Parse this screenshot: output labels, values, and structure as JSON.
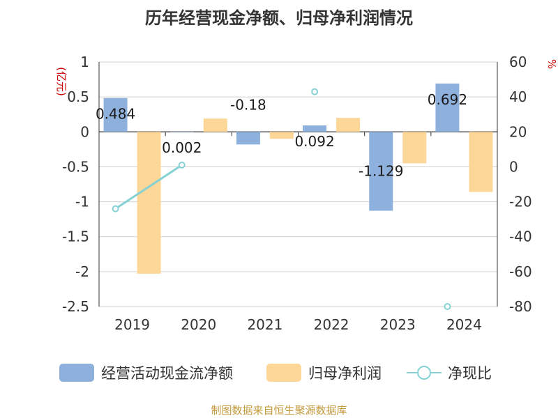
{
  "title": "历年经营现金净额、归母净利润情况",
  "footer": "制图数据来自恒生聚源数据库",
  "chart_data": {
    "type": "bar",
    "categories": [
      "2019",
      "2020",
      "2021",
      "2022",
      "2023",
      "2024"
    ],
    "series": [
      {
        "name": "经营活动现金流净额",
        "type": "bar",
        "axis": "left",
        "color": "#8eb0dc",
        "values": [
          0.484,
          0.002,
          -0.18,
          0.092,
          -1.129,
          0.692
        ],
        "labels": [
          "0.484",
          "0.002",
          "-0.18",
          "0.092",
          "-1.129",
          "0.692"
        ]
      },
      {
        "name": "归母净利润",
        "type": "bar",
        "axis": "left",
        "color": "#fdd797",
        "values": [
          -2.03,
          0.19,
          -0.1,
          0.2,
          -0.45,
          -0.86
        ]
      },
      {
        "name": "净现比",
        "type": "line",
        "axis": "right",
        "color": "#86d1d4",
        "values": [
          -24,
          1,
          null,
          43,
          null,
          -80
        ]
      }
    ],
    "left_axis": {
      "label": "(亿元)",
      "ylim": [
        -2.5,
        1
      ],
      "ticks": [
        "1",
        "0.5",
        "0",
        "-0.5",
        "-1",
        "-1.5",
        "-2",
        "-2.5"
      ]
    },
    "right_axis": {
      "label": "%",
      "ylim": [
        -80,
        60
      ],
      "ticks": [
        "60",
        "40",
        "20",
        "0",
        "-20",
        "-40",
        "-60",
        "-80"
      ]
    },
    "grid": true,
    "legend_position": "bottom"
  }
}
